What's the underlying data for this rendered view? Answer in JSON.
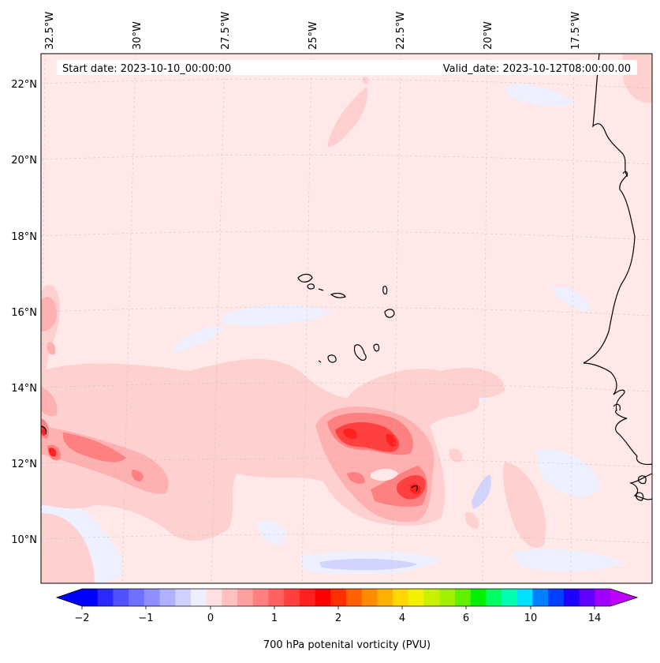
{
  "header": {
    "start_date": "Start date: 2023-10-10_00:00:00",
    "valid_date": "Valid_date: 2023-10-12T08:00:00.00"
  },
  "map": {
    "lon_labels": [
      "32.5°W",
      "30°W",
      "27.5°W",
      "25°W",
      "22.5°W",
      "20°W",
      "17.5°W"
    ],
    "lat_labels": [
      "22°N",
      "20°N",
      "18°N",
      "16°N",
      "14°N",
      "12°N",
      "10°N"
    ],
    "field_colors": {
      "background": "#ffe8e8",
      "weak_positive": "#ffd0d0",
      "moderate": "#ffb0b0",
      "strong": "#ff7070",
      "max": "#ff2020",
      "weak_negative": "#eef0ff",
      "negative": "#d0d4ff"
    }
  },
  "colorbar": {
    "title": "700 hPa potenital vorticity (PVU)",
    "tick_labels": [
      "−2",
      "−1",
      "0",
      "1",
      "2",
      "4",
      "6",
      "10",
      "14"
    ],
    "colors": [
      "#0000ff",
      "#2a2aff",
      "#5050ff",
      "#7070ff",
      "#8f8fff",
      "#b0b0ff",
      "#d0d0ff",
      "#eeeeff",
      "#ffe0e0",
      "#ffc0c0",
      "#ffa0a0",
      "#ff8080",
      "#ff6060",
      "#ff4040",
      "#ff2020",
      "#ff0000",
      "#ff3000",
      "#ff6000",
      "#ff8c00",
      "#ffb000",
      "#ffd800",
      "#f0f000",
      "#c8f000",
      "#a0f000",
      "#60f000",
      "#00f000",
      "#00ff60",
      "#00ffb0",
      "#00e0ff",
      "#0080ff",
      "#0040ff",
      "#2000ff",
      "#6000ff",
      "#a000ff"
    ],
    "left_extension_color": "#0000ff",
    "right_extension_color": "#c000ff"
  }
}
